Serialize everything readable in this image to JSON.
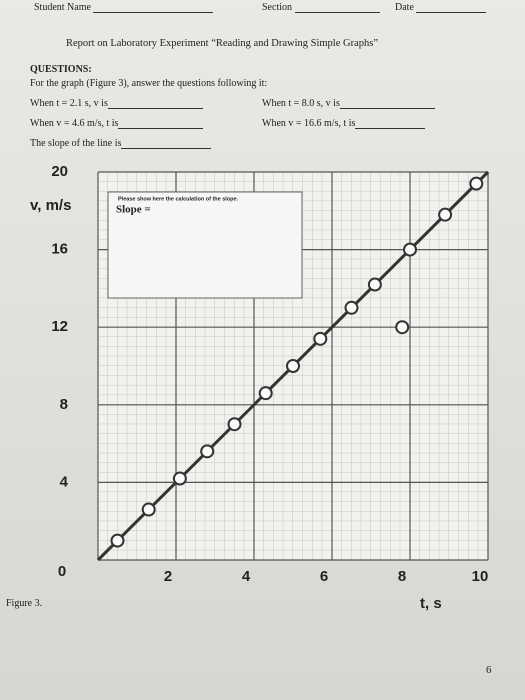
{
  "header": {
    "student_name": "Student Name",
    "section": "Section",
    "date": "Date",
    "title": "Report on Laboratory Experiment “Reading and Drawing Simple Graphs”"
  },
  "questions": {
    "heading": "QUESTIONS:",
    "intro": "For the graph (Figure 3), answer the questions following it:",
    "items": [
      "When t = 2.1 s, v is",
      "When t = 8.0 s, v is",
      "When v = 4.6 m/s, t is",
      "When v = 16.6 m/s, t is",
      "The slope of the line is"
    ]
  },
  "footer": {
    "page_number": "6"
  },
  "chart_data": {
    "type": "scatter",
    "caption": "Figure 3.",
    "x_label": "t, s",
    "y_label": "v, m/s",
    "box_note": "Please show here the calculation of the slope.",
    "box_label": "Slope =",
    "x": [
      0.5,
      1.3,
      2.1,
      2.8,
      3.5,
      4.3,
      5.0,
      5.7,
      6.5,
      7.1,
      7.8,
      8.0,
      8.9,
      9.7
    ],
    "values": [
      1.0,
      2.6,
      4.2,
      5.6,
      7.0,
      8.6,
      10.0,
      11.4,
      13.0,
      14.2,
      12.0,
      16.0,
      17.8,
      19.4
    ],
    "fit": {
      "x": [
        0,
        10
      ],
      "values": [
        0,
        20
      ]
    },
    "color": "#333333",
    "xlim": [
      0,
      10
    ],
    "xticks": [
      0,
      2,
      4,
      6,
      8,
      10
    ],
    "ylim": [
      0,
      20
    ],
    "yticks": [
      0,
      4,
      8,
      12,
      16,
      20
    ],
    "grid": true
  }
}
